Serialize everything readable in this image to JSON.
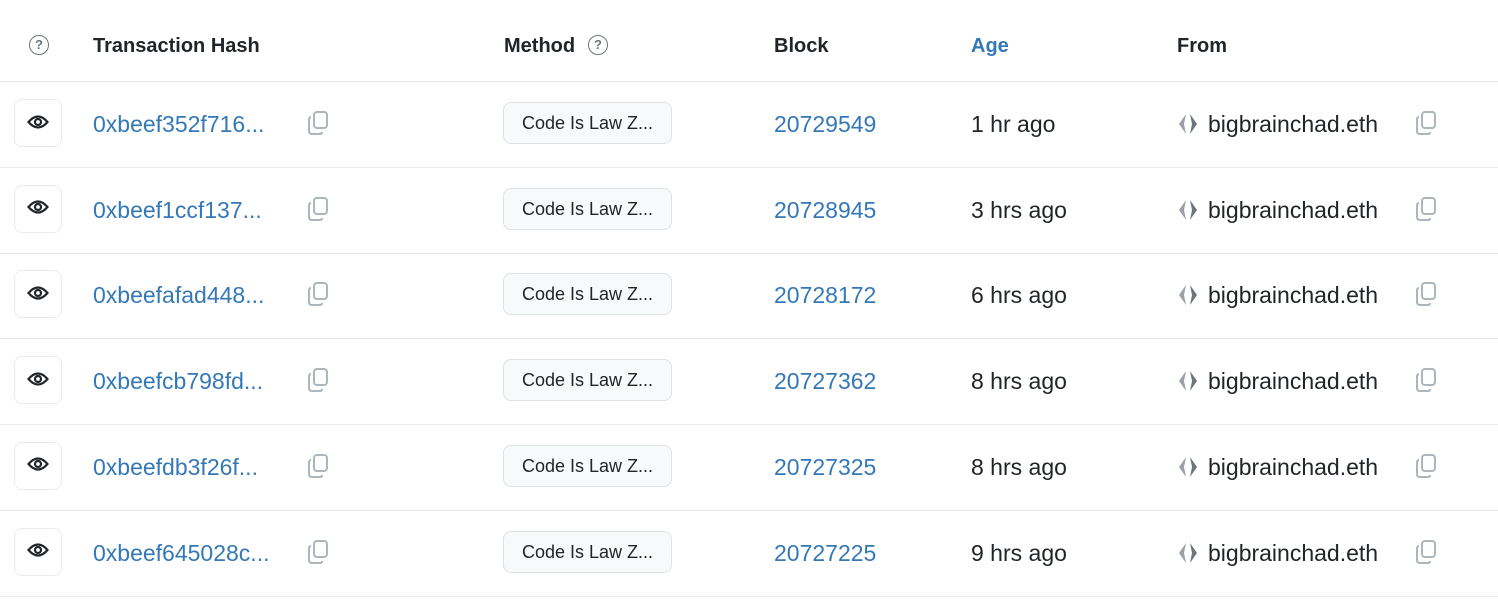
{
  "header": {
    "info_icon": "question-circle-icon",
    "transaction_hash": "Transaction Hash",
    "method": "Method",
    "block": "Block",
    "age": "Age",
    "from": "From"
  },
  "colors": {
    "link": "#3478b7",
    "text": "#212529",
    "border": "#e9ecef"
  },
  "rows": [
    {
      "hash": "0xbeef352f716...",
      "method": "Code Is Law Z...",
      "block": "20729549",
      "age": "1 hr ago",
      "from": "bigbrainchad.eth"
    },
    {
      "hash": "0xbeef1ccf137...",
      "method": "Code Is Law Z...",
      "block": "20728945",
      "age": "3 hrs ago",
      "from": "bigbrainchad.eth"
    },
    {
      "hash": "0xbeefafad448...",
      "method": "Code Is Law Z...",
      "block": "20728172",
      "age": "6 hrs ago",
      "from": "bigbrainchad.eth"
    },
    {
      "hash": "0xbeefcb798fd...",
      "method": "Code Is Law Z...",
      "block": "20727362",
      "age": "8 hrs ago",
      "from": "bigbrainchad.eth"
    },
    {
      "hash": "0xbeefdb3f26f...",
      "method": "Code Is Law Z...",
      "block": "20727325",
      "age": "8 hrs ago",
      "from": "bigbrainchad.eth"
    },
    {
      "hash": "0xbeef645028c...",
      "method": "Code Is Law Z...",
      "block": "20727225",
      "age": "9 hrs ago",
      "from": "bigbrainchad.eth"
    }
  ]
}
